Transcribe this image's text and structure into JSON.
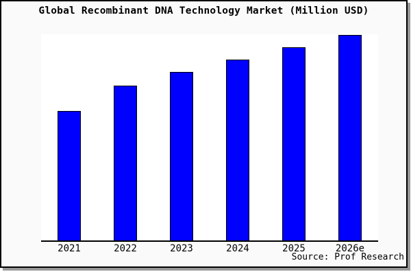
{
  "window": {
    "title": "Global Recombinant DNA Technology Market (Million USD)"
  },
  "source_credit": "Source: Prof Research",
  "colors": {
    "bar_fill": "#0000ff",
    "bar_border": "#000000",
    "plot_background": "#ffffff",
    "canvas_background": "#fafafa",
    "frame_border": "#000000",
    "frame_shadow": "#999999",
    "text": "#000000"
  },
  "chart_data": {
    "type": "bar",
    "title": "Global Recombinant DNA Technology Market (Million USD)",
    "categories": [
      "2021",
      "2022",
      "2023",
      "2024",
      "2025",
      "2026e"
    ],
    "values": [
      63,
      75.3,
      82,
      88,
      94,
      100
    ],
    "xlabel": "",
    "ylabel": "",
    "ylim": [
      0,
      100.3
    ],
    "grid": false,
    "legend": "none",
    "y_axis_tick_labels": "none",
    "bar_color": "#0000ff",
    "note": "Chart shows no y-axis scale; values are relative estimates of bar heights normalized so 2026e = 100."
  }
}
